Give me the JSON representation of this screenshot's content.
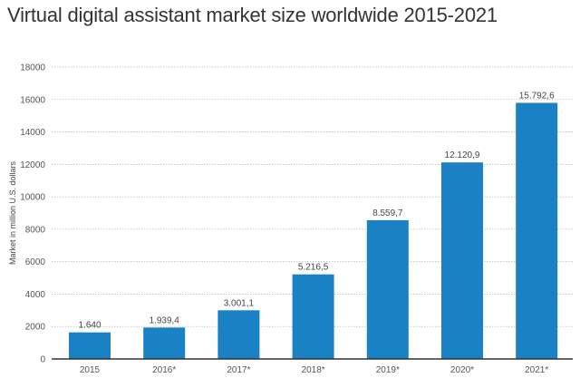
{
  "chart_data": {
    "type": "bar",
    "title": "Virtual digital assistant market size worldwide 2015-2021",
    "xlabel": "",
    "ylabel": "Market in million U.S. dollars",
    "categories": [
      "2015",
      "2016*",
      "2017*",
      "2018*",
      "2019*",
      "2020*",
      "2021*"
    ],
    "values": [
      1640,
      1939.4,
      3001.1,
      5216.5,
      8559.7,
      12120.9,
      15792.6
    ],
    "data_labels": [
      "1.640",
      "1.939,4",
      "3.001,1",
      "5.216,5",
      "8.559,7",
      "12.120,9",
      "15.792,6"
    ],
    "ylim": [
      0,
      18000
    ],
    "yticks": [
      0,
      2000,
      4000,
      6000,
      8000,
      10000,
      12000,
      14000,
      16000,
      18000
    ],
    "grid": true,
    "bar_color": "#1a82c4"
  }
}
